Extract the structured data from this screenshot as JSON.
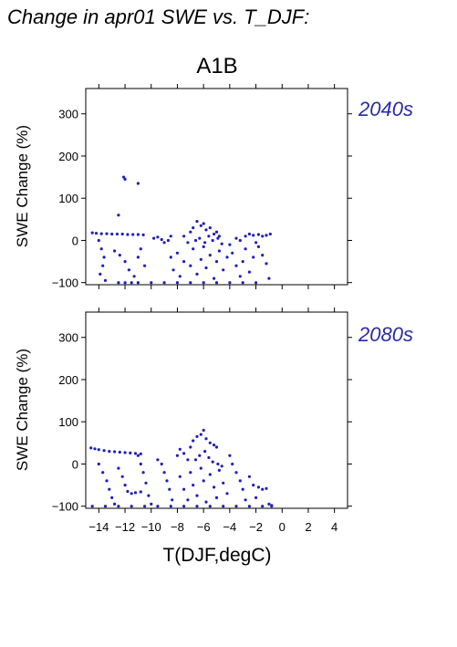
{
  "chart_data": {
    "type": "scatter",
    "title": "Change in apr01 SWE vs. T_DJF:",
    "subtitle": "A1B",
    "xlabel": "T(DJF,degC)",
    "ylabel": "SWE Change (%)",
    "xlim": [
      -15,
      5
    ],
    "ylim": [
      -105,
      360
    ],
    "xticks": [
      -14,
      -12,
      -10,
      -8,
      -6,
      -4,
      -2,
      0,
      2,
      4
    ],
    "xtick_labels": [
      "−14",
      "−12",
      "−10",
      "−8",
      "−6",
      "−4",
      "−2",
      "0",
      "2",
      "4"
    ],
    "yticks": [
      -100,
      0,
      100,
      200,
      300
    ],
    "ytick_labels": [
      "−100",
      "0",
      "100",
      "200",
      "300"
    ],
    "point_color": "#2020b8",
    "grid": false,
    "panels": [
      {
        "label": "2040s",
        "points": [
          [
            -11.0,
            135
          ],
          [
            -12.1,
            150
          ],
          [
            -12.0,
            145
          ],
          [
            -12.5,
            60
          ],
          [
            -14.5,
            18
          ],
          [
            -14.2,
            17
          ],
          [
            -13.8,
            16
          ],
          [
            -13.4,
            16
          ],
          [
            -13.0,
            15
          ],
          [
            -12.6,
            15
          ],
          [
            -12.2,
            15
          ],
          [
            -11.8,
            14
          ],
          [
            -11.4,
            14
          ],
          [
            -11.0,
            14
          ],
          [
            -10.6,
            13
          ],
          [
            -14.0,
            0
          ],
          [
            -13.8,
            -20
          ],
          [
            -13.6,
            -40
          ],
          [
            -13.7,
            -60
          ],
          [
            -13.9,
            -80
          ],
          [
            -13.5,
            -95
          ],
          [
            -12.8,
            -25
          ],
          [
            -12.4,
            -35
          ],
          [
            -12.0,
            -50
          ],
          [
            -11.7,
            -70
          ],
          [
            -11.3,
            -85
          ],
          [
            -11.0,
            -40
          ],
          [
            -10.8,
            -20
          ],
          [
            -10.5,
            -60
          ],
          [
            -12.5,
            -100
          ],
          [
            -12.0,
            -100
          ],
          [
            -11.5,
            -100
          ],
          [
            -11.0,
            -100
          ],
          [
            -10.0,
            -100
          ],
          [
            -9.0,
            -100
          ],
          [
            -8.0,
            -100
          ],
          [
            -7.0,
            -100
          ],
          [
            -6.0,
            -100
          ],
          [
            -5.0,
            -100
          ],
          [
            -4.0,
            -100
          ],
          [
            -3.0,
            -100
          ],
          [
            -2.0,
            -100
          ],
          [
            -9.8,
            5
          ],
          [
            -9.5,
            8
          ],
          [
            -9.2,
            2
          ],
          [
            -9.0,
            -5
          ],
          [
            -8.7,
            0
          ],
          [
            -8.5,
            10
          ],
          [
            -8.5,
            -40
          ],
          [
            -8.3,
            -70
          ],
          [
            -8.0,
            -30
          ],
          [
            -7.8,
            -85
          ],
          [
            -7.5,
            -50
          ],
          [
            -7.5,
            10
          ],
          [
            -7.2,
            -5
          ],
          [
            -7.0,
            20
          ],
          [
            -6.8,
            30
          ],
          [
            -6.5,
            45
          ],
          [
            -6.2,
            35
          ],
          [
            -6.0,
            40
          ],
          [
            -5.8,
            25
          ],
          [
            -5.5,
            30
          ],
          [
            -5.2,
            15
          ],
          [
            -5.0,
            20
          ],
          [
            -4.8,
            10
          ],
          [
            -7.0,
            -60
          ],
          [
            -6.8,
            -20
          ],
          [
            -6.5,
            -80
          ],
          [
            -6.2,
            -45
          ],
          [
            -6.0,
            -15
          ],
          [
            -5.8,
            -65
          ],
          [
            -5.5,
            -35
          ],
          [
            -5.2,
            -90
          ],
          [
            -5.0,
            -50
          ],
          [
            -4.8,
            -25
          ],
          [
            -4.5,
            -70
          ],
          [
            -4.2,
            -40
          ],
          [
            -4.0,
            -10
          ],
          [
            -6.6,
            0
          ],
          [
            -6.3,
            5
          ],
          [
            -5.9,
            -5
          ],
          [
            -5.6,
            10
          ],
          [
            -5.3,
            0
          ],
          [
            -4.9,
            5
          ],
          [
            -4.6,
            -8
          ],
          [
            -3.8,
            -30
          ],
          [
            -3.5,
            -60
          ],
          [
            -3.2,
            -85
          ],
          [
            -3.0,
            -50
          ],
          [
            -2.8,
            -20
          ],
          [
            -2.5,
            -75
          ],
          [
            -2.2,
            -40
          ],
          [
            -3.5,
            5
          ],
          [
            -3.2,
            0
          ],
          [
            -2.8,
            10
          ],
          [
            -2.5,
            15
          ],
          [
            -2.2,
            12
          ],
          [
            -1.8,
            14
          ],
          [
            -1.5,
            10
          ],
          [
            -1.2,
            12
          ],
          [
            -0.9,
            15
          ],
          [
            -2.0,
            -5
          ],
          [
            -1.8,
            -15
          ],
          [
            -1.5,
            -35
          ],
          [
            -1.2,
            -55
          ],
          [
            -1.0,
            -90
          ]
        ]
      },
      {
        "label": "2080s",
        "points": [
          [
            -14.6,
            38
          ],
          [
            -14.3,
            36
          ],
          [
            -14.0,
            34
          ],
          [
            -13.6,
            32
          ],
          [
            -13.2,
            30
          ],
          [
            -12.8,
            29
          ],
          [
            -12.4,
            28
          ],
          [
            -12.0,
            27
          ],
          [
            -11.6,
            26
          ],
          [
            -11.2,
            25
          ],
          [
            -10.8,
            24
          ],
          [
            -14.0,
            0
          ],
          [
            -13.7,
            -20
          ],
          [
            -13.4,
            -40
          ],
          [
            -13.2,
            -60
          ],
          [
            -13.0,
            -80
          ],
          [
            -12.8,
            -95
          ],
          [
            -12.5,
            -10
          ],
          [
            -12.2,
            -30
          ],
          [
            -12.0,
            -50
          ],
          [
            -11.8,
            -65
          ],
          [
            -11.5,
            -70
          ],
          [
            -11.2,
            -68
          ],
          [
            -10.8,
            -66
          ],
          [
            -11.0,
            20
          ],
          [
            -10.8,
            0
          ],
          [
            -10.6,
            -20
          ],
          [
            -10.4,
            -45
          ],
          [
            -10.2,
            -75
          ],
          [
            -10.0,
            -95
          ],
          [
            -14.5,
            -100
          ],
          [
            -13.5,
            -100
          ],
          [
            -12.5,
            -100
          ],
          [
            -11.5,
            -100
          ],
          [
            -10.5,
            -100
          ],
          [
            -9.5,
            -100
          ],
          [
            -8.5,
            -100
          ],
          [
            -7.5,
            -100
          ],
          [
            -6.5,
            -100
          ],
          [
            -5.5,
            -100
          ],
          [
            -4.5,
            -100
          ],
          [
            -3.5,
            -100
          ],
          [
            -2.5,
            -100
          ],
          [
            -1.5,
            -100
          ],
          [
            -0.8,
            -100
          ],
          [
            -9.5,
            10
          ],
          [
            -9.2,
            0
          ],
          [
            -9.0,
            -20
          ],
          [
            -8.8,
            -40
          ],
          [
            -8.6,
            -60
          ],
          [
            -8.4,
            -85
          ],
          [
            -8.0,
            20
          ],
          [
            -7.8,
            35
          ],
          [
            -7.5,
            25
          ],
          [
            -7.2,
            10
          ],
          [
            -7.0,
            40
          ],
          [
            -6.8,
            55
          ],
          [
            -6.5,
            65
          ],
          [
            -6.2,
            70
          ],
          [
            -6.0,
            80
          ],
          [
            -5.8,
            60
          ],
          [
            -5.5,
            50
          ],
          [
            -5.2,
            45
          ],
          [
            -5.0,
            40
          ],
          [
            -7.8,
            -30
          ],
          [
            -7.5,
            -60
          ],
          [
            -7.2,
            -85
          ],
          [
            -7.0,
            -20
          ],
          [
            -6.8,
            -50
          ],
          [
            -6.5,
            -75
          ],
          [
            -6.2,
            -10
          ],
          [
            -6.0,
            -40
          ],
          [
            -5.8,
            -90
          ],
          [
            -5.5,
            -25
          ],
          [
            -5.2,
            -55
          ],
          [
            -5.0,
            -80
          ],
          [
            -4.8,
            -15
          ],
          [
            -4.5,
            -45
          ],
          [
            -4.2,
            -70
          ],
          [
            -6.6,
            10
          ],
          [
            -6.3,
            20
          ],
          [
            -5.9,
            30
          ],
          [
            -5.6,
            15
          ],
          [
            -5.3,
            5
          ],
          [
            -4.9,
            0
          ],
          [
            -4.6,
            -5
          ],
          [
            -4.0,
            20
          ],
          [
            -3.8,
            0
          ],
          [
            -3.5,
            -20
          ],
          [
            -3.2,
            -40
          ],
          [
            -3.0,
            -60
          ],
          [
            -2.8,
            -85
          ],
          [
            -2.5,
            -30
          ],
          [
            -2.2,
            -50
          ],
          [
            -2.0,
            -80
          ],
          [
            -1.8,
            -55
          ],
          [
            -1.5,
            -60
          ],
          [
            -1.2,
            -58
          ],
          [
            -1.0,
            -95
          ],
          [
            -0.8,
            -98
          ]
        ]
      }
    ]
  }
}
